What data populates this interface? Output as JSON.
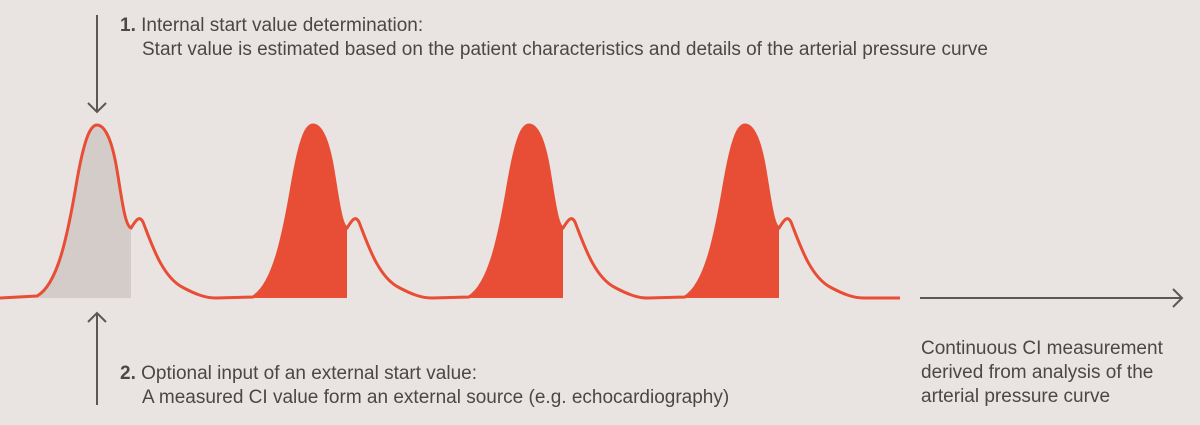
{
  "step1": {
    "number": "1.",
    "title": "Internal start value determination:",
    "description": "Start value is estimated  based on the patient characteristics and details of the arterial pressure curve"
  },
  "step2": {
    "number": "2.",
    "title": "Optional input of an external start value:",
    "description": "A measured CI value form an external source (e.g. echocardiography)"
  },
  "result": {
    "lines": [
      "Continuous CI measurement",
      "derived from analysis of the",
      "arterial pressure curve"
    ]
  },
  "colors": {
    "curve": "#e84e36",
    "initial_fill": "#d4ccc9",
    "arrow": "#5a5756",
    "background": "#e9e4e2"
  },
  "beats": 4
}
